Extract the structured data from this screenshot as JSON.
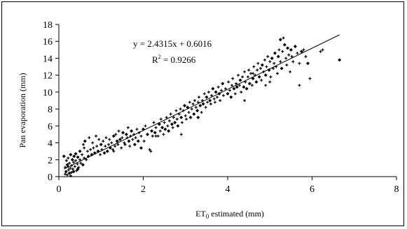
{
  "chart_data": {
    "type": "scatter",
    "title": "",
    "xlabel_main": "ET",
    "xlabel_sub": "0",
    "xlabel_rest": " estimated (mm)",
    "ylabel": "Pan evaporation (mm)",
    "xlim": [
      0,
      8
    ],
    "ylim": [
      0,
      18
    ],
    "x_ticks": [
      "0",
      "2",
      "4",
      "6",
      "8"
    ],
    "y_ticks": [
      "0",
      "2",
      "4",
      "6",
      "8",
      "10",
      "12",
      "14",
      "16",
      "18"
    ],
    "grid": false,
    "legend": "none",
    "trendline": {
      "slope": 2.4315,
      "intercept": 0.6016,
      "x_range": [
        0.12,
        6.65
      ]
    },
    "equation_text": "y = 2.4315x + 0.6016",
    "r2_label": "R",
    "r2_sup": "2",
    "r2_value": " = 0.9266",
    "series": [
      {
        "points": [
          [
            0.12,
            2.4
          ],
          [
            0.15,
            0.3
          ],
          [
            0.15,
            1.1
          ],
          [
            0.17,
            0.6
          ],
          [
            0.18,
            1.9
          ],
          [
            0.2,
            0.2
          ],
          [
            0.2,
            1.4
          ],
          [
            0.22,
            2.2
          ],
          [
            0.23,
            0.8
          ],
          [
            0.25,
            0.4
          ],
          [
            0.25,
            1.6
          ],
          [
            0.27,
            1.0
          ],
          [
            0.28,
            2.6
          ],
          [
            0.3,
            0.5
          ],
          [
            0.3,
            1.3
          ],
          [
            0.32,
            2.0
          ],
          [
            0.33,
            0.9
          ],
          [
            0.35,
            1.7
          ],
          [
            0.36,
            2.4
          ],
          [
            0.38,
            1.2
          ],
          [
            0.4,
            1.9
          ],
          [
            0.4,
            2.7
          ],
          [
            0.42,
            0.7
          ],
          [
            0.44,
            1.5
          ],
          [
            0.45,
            2.3
          ],
          [
            0.47,
            1.1
          ],
          [
            0.5,
            2.0
          ],
          [
            0.5,
            3.0
          ],
          [
            0.52,
            1.6
          ],
          [
            0.55,
            2.6
          ],
          [
            0.57,
            1.4
          ],
          [
            0.6,
            2.2
          ],
          [
            0.6,
            3.4
          ],
          [
            0.62,
            4.2
          ],
          [
            0.65,
            2.0
          ],
          [
            0.68,
            3.0
          ],
          [
            0.7,
            2.4
          ],
          [
            0.72,
            4.6
          ],
          [
            0.75,
            3.2
          ],
          [
            0.78,
            2.6
          ],
          [
            0.8,
            4.0
          ],
          [
            0.82,
            3.4
          ],
          [
            0.85,
            2.8
          ],
          [
            0.88,
            4.8
          ],
          [
            0.9,
            3.6
          ],
          [
            0.93,
            3.0
          ],
          [
            0.95,
            4.4
          ],
          [
            0.98,
            2.6
          ],
          [
            1.0,
            3.8
          ],
          [
            1.02,
            3.2
          ],
          [
            1.05,
            4.2
          ],
          [
            1.08,
            2.8
          ],
          [
            1.1,
            3.6
          ],
          [
            1.12,
            4.6
          ],
          [
            1.15,
            3.0
          ],
          [
            1.18,
            3.8
          ],
          [
            1.2,
            4.4
          ],
          [
            1.22,
            3.4
          ],
          [
            1.25,
            4.0
          ],
          [
            1.28,
            3.2
          ],
          [
            1.3,
            4.8
          ],
          [
            1.33,
            3.6
          ],
          [
            1.35,
            5.0
          ],
          [
            1.38,
            4.2
          ],
          [
            1.4,
            3.8
          ],
          [
            1.42,
            5.4
          ],
          [
            1.45,
            4.4
          ],
          [
            1.48,
            3.4
          ],
          [
            1.5,
            4.6
          ],
          [
            1.52,
            5.2
          ],
          [
            1.55,
            4.0
          ],
          [
            1.57,
            3.8
          ],
          [
            1.6,
            5.0
          ],
          [
            1.62,
            4.6
          ],
          [
            1.64,
            5.8
          ],
          [
            1.66,
            4.2
          ],
          [
            1.68,
            3.6
          ],
          [
            1.7,
            4.8
          ],
          [
            1.72,
            5.4
          ],
          [
            1.75,
            4.4
          ],
          [
            1.78,
            5.0
          ],
          [
            1.8,
            3.8
          ],
          [
            1.82,
            4.6
          ],
          [
            1.85,
            5.6
          ],
          [
            1.88,
            4.2
          ],
          [
            1.9,
            5.2
          ],
          [
            1.95,
            4.8
          ],
          [
            2.0,
            5.6
          ],
          [
            2.02,
            4.2
          ],
          [
            2.05,
            6.0
          ],
          [
            2.1,
            5.0
          ],
          [
            2.15,
            3.2
          ],
          [
            2.18,
            3.0
          ],
          [
            2.2,
            5.4
          ],
          [
            2.22,
            4.8
          ],
          [
            2.25,
            6.4
          ],
          [
            2.28,
            5.2
          ],
          [
            2.3,
            5.8
          ],
          [
            2.35,
            4.8
          ],
          [
            2.38,
            6.2
          ],
          [
            2.4,
            5.4
          ],
          [
            2.42,
            6.8
          ],
          [
            2.45,
            5.8
          ],
          [
            2.48,
            5.0
          ],
          [
            2.5,
            6.4
          ],
          [
            2.52,
            5.6
          ],
          [
            2.55,
            7.0
          ],
          [
            2.58,
            6.0
          ],
          [
            2.6,
            5.4
          ],
          [
            2.62,
            6.6
          ],
          [
            2.65,
            7.4
          ],
          [
            2.68,
            6.2
          ],
          [
            2.7,
            5.8
          ],
          [
            2.72,
            7.0
          ],
          [
            2.75,
            6.4
          ],
          [
            2.78,
            7.8
          ],
          [
            2.8,
            6.8
          ],
          [
            2.82,
            6.0
          ],
          [
            2.85,
            7.4
          ],
          [
            2.88,
            8.0
          ],
          [
            2.9,
            7.0
          ],
          [
            2.92,
            6.4
          ],
          [
            2.95,
            7.8
          ],
          [
            2.98,
            8.4
          ],
          [
            3.0,
            7.2
          ],
          [
            3.02,
            6.8
          ],
          [
            3.05,
            8.2
          ],
          [
            3.08,
            7.6
          ],
          [
            3.1,
            8.8
          ],
          [
            3.12,
            7.0
          ],
          [
            3.15,
            8.0
          ],
          [
            3.18,
            8.6
          ],
          [
            3.2,
            7.4
          ],
          [
            3.22,
            9.0
          ],
          [
            3.25,
            8.2
          ],
          [
            3.28,
            7.8
          ],
          [
            3.3,
            8.8
          ],
          [
            3.32,
            9.4
          ],
          [
            3.35,
            8.4
          ],
          [
            3.38,
            7.6
          ],
          [
            3.4,
            9.0
          ],
          [
            3.42,
            8.6
          ],
          [
            3.45,
            9.8
          ],
          [
            3.48,
            8.2
          ],
          [
            3.5,
            9.4
          ],
          [
            3.52,
            8.8
          ],
          [
            3.55,
            10.0
          ],
          [
            3.58,
            9.0
          ],
          [
            3.6,
            8.6
          ],
          [
            3.62,
            9.6
          ],
          [
            3.65,
            10.4
          ],
          [
            3.68,
            9.2
          ],
          [
            3.7,
            8.8
          ],
          [
            3.72,
            10.0
          ],
          [
            3.75,
            9.4
          ],
          [
            3.78,
            10.6
          ],
          [
            3.8,
            9.8
          ],
          [
            3.82,
            9.0
          ],
          [
            3.85,
            10.2
          ],
          [
            3.88,
            11.0
          ],
          [
            3.9,
            9.6
          ],
          [
            3.95,
            10.4
          ],
          [
            4.0,
            9.8
          ],
          [
            4.02,
            11.2
          ],
          [
            4.05,
            10.2
          ],
          [
            4.08,
            9.4
          ],
          [
            4.1,
            10.8
          ],
          [
            4.12,
            11.6
          ],
          [
            4.15,
            10.4
          ],
          [
            4.18,
            9.8
          ],
          [
            4.2,
            11.0
          ],
          [
            4.22,
            10.6
          ],
          [
            4.25,
            12.0
          ],
          [
            4.28,
            10.8
          ],
          [
            4.3,
            11.4
          ],
          [
            4.32,
            10.0
          ],
          [
            4.35,
            11.8
          ],
          [
            4.38,
            10.6
          ],
          [
            4.4,
            12.4
          ],
          [
            4.42,
            11.2
          ],
          [
            4.45,
            10.4
          ],
          [
            4.48,
            11.8
          ],
          [
            4.5,
            12.6
          ],
          [
            4.52,
            11.0
          ],
          [
            4.55,
            12.2
          ],
          [
            4.58,
            10.8
          ],
          [
            4.6,
            11.6
          ],
          [
            4.62,
            13.0
          ],
          [
            4.65,
            12.0
          ],
          [
            4.68,
            11.2
          ],
          [
            4.7,
            12.6
          ],
          [
            4.72,
            13.4
          ],
          [
            4.75,
            11.8
          ],
          [
            4.78,
            12.8
          ],
          [
            4.8,
            11.4
          ],
          [
            4.82,
            13.2
          ],
          [
            4.85,
            12.4
          ],
          [
            4.88,
            13.8
          ],
          [
            4.9,
            12.0
          ],
          [
            4.92,
            13.0
          ],
          [
            4.95,
            14.2
          ],
          [
            4.98,
            12.6
          ],
          [
            5.0,
            13.6
          ],
          [
            5.02,
            11.8
          ],
          [
            5.05,
            14.0
          ],
          [
            5.08,
            12.8
          ],
          [
            5.1,
            13.4
          ],
          [
            5.12,
            14.6
          ],
          [
            5.15,
            13.0
          ],
          [
            5.18,
            12.2
          ],
          [
            5.2,
            14.2
          ],
          [
            5.22,
            15.0
          ],
          [
            5.25,
            13.6
          ],
          [
            5.28,
            12.8
          ],
          [
            5.3,
            14.8
          ],
          [
            5.32,
            16.4
          ],
          [
            5.35,
            15.6
          ],
          [
            5.38,
            14.0
          ],
          [
            5.4,
            13.2
          ],
          [
            5.42,
            15.2
          ],
          [
            5.45,
            14.4
          ],
          [
            5.48,
            12.4
          ],
          [
            5.5,
            15.0
          ],
          [
            5.52,
            14.2
          ],
          [
            5.55,
            13.6
          ],
          [
            5.6,
            15.4
          ],
          [
            5.65,
            14.6
          ],
          [
            5.7,
            13.4
          ],
          [
            5.75,
            14.8
          ],
          [
            5.8,
            15.0
          ],
          [
            5.85,
            14.2
          ],
          [
            5.9,
            13.4
          ],
          [
            4.4,
            9.0
          ],
          [
            4.6,
            12.2
          ],
          [
            5.25,
            16.2
          ],
          [
            6.2,
            14.8
          ],
          [
            6.25,
            15.0
          ],
          [
            6.65,
            13.8
          ],
          [
            5.0,
            11.2
          ],
          [
            4.9,
            10.8
          ],
          [
            3.3,
            7.0
          ],
          [
            2.9,
            5.0
          ],
          [
            2.3,
            4.8
          ],
          [
            1.95,
            3.4
          ],
          [
            1.3,
            3.0
          ],
          [
            0.58,
            3.8
          ],
          [
            0.45,
            0.9
          ],
          [
            0.28,
            0.1
          ],
          [
            0.22,
            1.2
          ],
          [
            0.35,
            0.6
          ],
          [
            5.95,
            11.6
          ],
          [
            5.7,
            10.8
          ]
        ]
      }
    ]
  }
}
